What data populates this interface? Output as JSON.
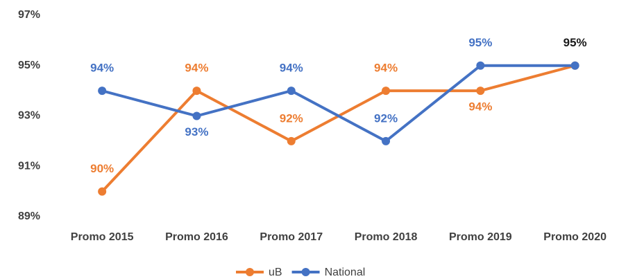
{
  "chart_data": {
    "type": "line",
    "categories": [
      "Promo 2015",
      "Promo 2016",
      "Promo 2017",
      "Promo 2018",
      "Promo 2019",
      "Promo 2020"
    ],
    "series": [
      {
        "name": "uB",
        "color": "#ed7d31",
        "values": [
          90,
          94,
          92,
          94,
          94,
          95
        ],
        "value_labels": [
          "90%",
          "94%",
          "92%",
          "94%",
          "94%",
          "95%"
        ]
      },
      {
        "name": "National",
        "color": "#4472c4",
        "values": [
          94,
          93,
          94,
          92,
          95,
          95
        ],
        "value_labels": [
          "94%",
          "93%",
          "94%",
          "92%",
          "95%",
          null
        ]
      }
    ],
    "ylim": [
      89,
      97
    ],
    "yticks": [
      {
        "value": 89,
        "label": "89%"
      },
      {
        "value": 91,
        "label": "91%"
      },
      {
        "value": 93,
        "label": "93%"
      },
      {
        "value": 95,
        "label": "95%"
      },
      {
        "value": 97,
        "label": "97%"
      }
    ],
    "grid": false,
    "legend": "bottom"
  }
}
